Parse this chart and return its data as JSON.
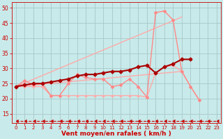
{
  "background_color": "#c8eaea",
  "grid_color": "#a8c8c8",
  "xlabel": "Vent moyen/en rafales ( km/h )",
  "xlabel_color": "#cc0000",
  "tick_color": "#cc0000",
  "xlim": [
    -0.5,
    23.5
  ],
  "ylim": [
    12,
    52
  ],
  "yticks": [
    15,
    20,
    25,
    30,
    35,
    40,
    45,
    50
  ],
  "xticks": [
    0,
    1,
    2,
    3,
    4,
    5,
    6,
    7,
    8,
    9,
    10,
    11,
    12,
    13,
    14,
    15,
    16,
    17,
    18,
    19,
    20,
    21,
    22,
    23
  ],
  "line_dark_red": {
    "x": [
      0,
      1,
      2,
      3,
      4,
      5,
      6,
      7,
      8,
      9,
      10,
      11,
      12,
      13,
      14,
      15,
      16,
      17,
      18,
      19,
      20
    ],
    "y": [
      24,
      24.5,
      25,
      25,
      25.5,
      26,
      26.5,
      27.5,
      28,
      28,
      28.5,
      29,
      29,
      29.5,
      30.5,
      31,
      28.5,
      30.5,
      31.5,
      33,
      33
    ],
    "color": "#aa0000",
    "lw": 1.5,
    "marker": "D",
    "ms": 2.5
  },
  "line_light_zigzag": {
    "x": [
      0,
      1,
      2,
      3,
      4,
      5,
      6,
      7,
      8,
      9,
      10,
      11,
      12,
      13,
      14,
      15,
      16,
      17,
      18,
      19,
      20,
      21,
      22,
      23
    ],
    "y": [
      24,
      26,
      24.5,
      25,
      21,
      21,
      25,
      28,
      27,
      26.5,
      26.5,
      24,
      24.5,
      26.5,
      24,
      20.5,
      48.5,
      49,
      46,
      29,
      24,
      19.5,
      null,
      null
    ],
    "color": "#ff8888",
    "lw": 1.0,
    "marker": "D",
    "ms": 2.0
  },
  "line_light_flat": {
    "x": [
      0,
      1,
      2,
      3,
      4,
      5,
      6,
      7,
      8,
      9,
      10,
      11,
      12,
      13,
      14,
      15,
      16,
      17,
      18,
      19,
      20,
      21,
      22,
      23
    ],
    "y": [
      24,
      24,
      24,
      24,
      21,
      21,
      21,
      21,
      21,
      21,
      21,
      21,
      21,
      21,
      21,
      20.5,
      28.5,
      30.5,
      31,
      29,
      24,
      19.5,
      null,
      null
    ],
    "color": "#ffaaaa",
    "lw": 1.0,
    "marker": "D",
    "ms": 1.5
  },
  "line_diagonal_upper": {
    "x": [
      0,
      19
    ],
    "y": [
      24,
      47
    ],
    "color": "#ffaaaa",
    "lw": 1.0
  },
  "line_diagonal_lower": {
    "x": [
      0,
      19
    ],
    "y": [
      24,
      29
    ],
    "color": "#ffaaaa",
    "lw": 1.0
  },
  "line_bottom": {
    "x": [
      0,
      1,
      2,
      3,
      4,
      5,
      6,
      7,
      8,
      9,
      10,
      11,
      12,
      13,
      14,
      15,
      16,
      17,
      18,
      19,
      20,
      21,
      22,
      23
    ],
    "y": [
      12.5,
      12.5,
      12.5,
      12.5,
      12.5,
      12.5,
      12.5,
      12.5,
      12.5,
      12.5,
      12.5,
      12.5,
      12.5,
      12.5,
      12.5,
      12.5,
      12.5,
      12.5,
      12.5,
      12.5,
      12.5,
      12.5,
      12.5,
      12.5
    ],
    "color": "#cc0000",
    "lw": 0.8,
    "ms": 3
  }
}
